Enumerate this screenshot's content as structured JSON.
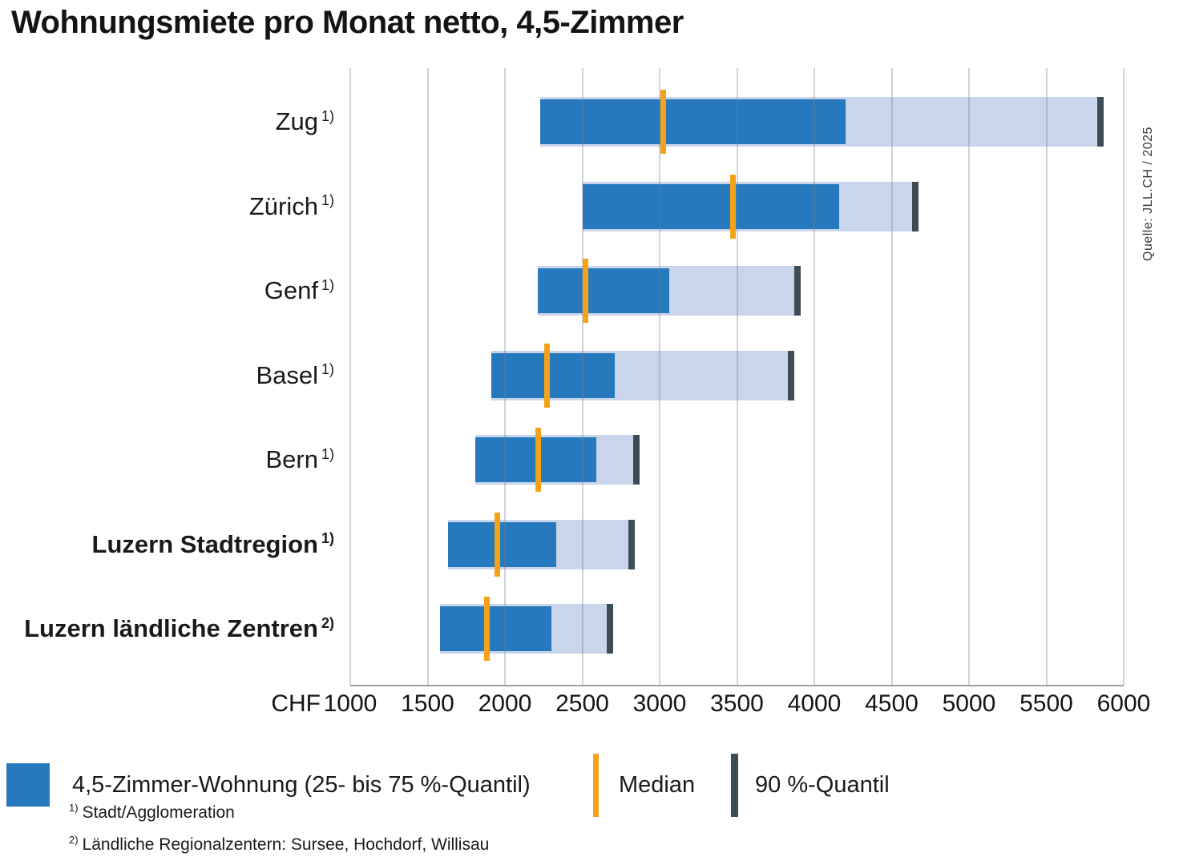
{
  "title": "Wohnungsmiete pro Monat netto, 4,5-Zimmer",
  "source": "Quelle: JLL.CH / 2025",
  "axis": {
    "unit_label": "CHF"
  },
  "legend": {
    "iqr_label": "4,5-Zimmer-Wohnung (25- bis 75 %-Quantil)",
    "median_label": "Median",
    "q90_label": "90 %-Quantil"
  },
  "footnotes": [
    {
      "marker": "1)",
      "text": "Stadt/Agglomeration"
    },
    {
      "marker": "2)",
      "text": "Ländliche Regionalzentern: Sursee, Hochdorf, Willisau"
    }
  ],
  "colors": {
    "bar_iqr": "#2679bd",
    "bar_range": "#c9d5ea",
    "median": "#f5a21a",
    "q90": "#3d4d56",
    "gridline": "rgba(120,130,140,0.35)",
    "axis_line": "#99a1a8",
    "text": "#1a1a1a"
  },
  "chart_data": {
    "type": "bar",
    "orientation": "horizontal",
    "title": "Wohnungsmiete pro Monat netto, 4,5-Zimmer",
    "xlabel": "CHF",
    "xlim": [
      1000,
      6000
    ],
    "x_ticks": [
      1000,
      1500,
      2000,
      2500,
      3000,
      3500,
      4000,
      4500,
      5000,
      5500,
      6000
    ],
    "grid": true,
    "legend_position": "bottom",
    "value_unit": "CHF pro Monat netto",
    "quantile_definition": {
      "bar": "25–75 %",
      "range": "25–90 %",
      "marker": "Median",
      "tick": "90 %-Quantil"
    },
    "categories": [
      "Zug",
      "Zürich",
      "Genf",
      "Basel",
      "Bern",
      "Luzern Stadtregion",
      "Luzern ländliche Zentren"
    ],
    "series": [
      {
        "label": "Zug",
        "footnote": "1)",
        "bold": false,
        "q25": 2230,
        "median": 3020,
        "q75": 4200,
        "q90": 5830
      },
      {
        "label": "Zürich",
        "footnote": "1)",
        "bold": false,
        "q25": 2500,
        "median": 3470,
        "q75": 4160,
        "q90": 4630
      },
      {
        "label": "Genf",
        "footnote": "1)",
        "bold": false,
        "q25": 2210,
        "median": 2520,
        "q75": 3060,
        "q90": 3870
      },
      {
        "label": "Basel",
        "footnote": "1)",
        "bold": false,
        "q25": 1910,
        "median": 2270,
        "q75": 2710,
        "q90": 3830
      },
      {
        "label": "Bern",
        "footnote": "1)",
        "bold": false,
        "q25": 1810,
        "median": 2210,
        "q75": 2590,
        "q90": 2830
      },
      {
        "label": "Luzern Stadtregion",
        "footnote": "1)",
        "bold": true,
        "q25": 1630,
        "median": 1950,
        "q75": 2330,
        "q90": 2800
      },
      {
        "label": "Luzern ländliche Zentren",
        "footnote": "2)",
        "bold": true,
        "q25": 1580,
        "median": 1880,
        "q75": 2300,
        "q90": 2660
      }
    ]
  }
}
